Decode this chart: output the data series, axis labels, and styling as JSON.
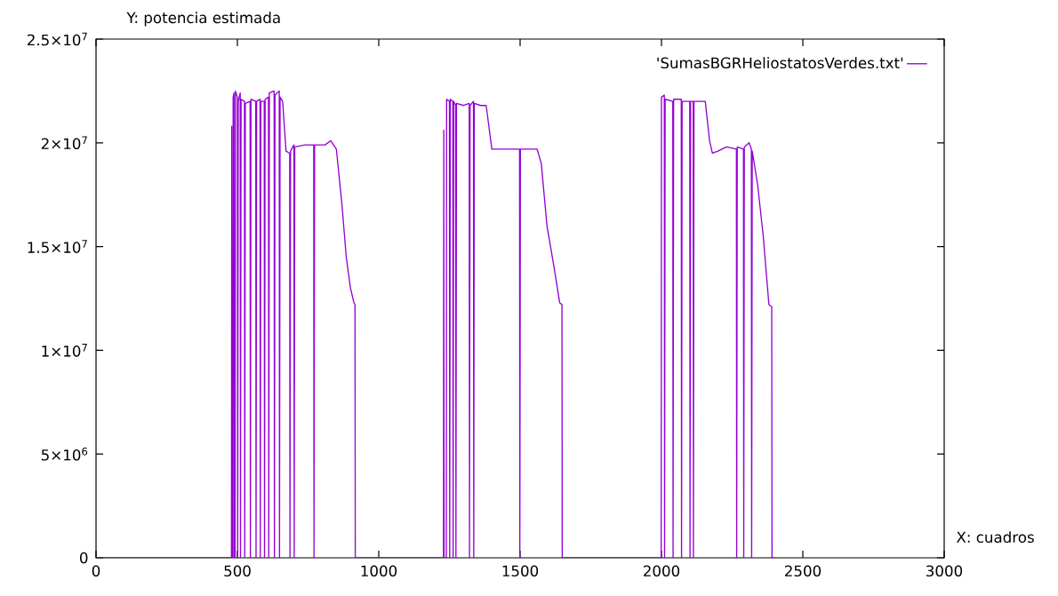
{
  "chart_data": {
    "type": "line",
    "xlabel": "X: cuadros",
    "ylabel": "Y: potencia estimada",
    "xlim": [
      0,
      3000
    ],
    "ylim": [
      0,
      25000000
    ],
    "xticks": [
      0,
      500,
      1000,
      1500,
      2000,
      2500,
      3000
    ],
    "yticks": [
      0,
      {
        "value": 5000000,
        "label": "5×10$^{6}$"
      },
      {
        "value": 10000000,
        "label": "1×10$^{7}$"
      },
      {
        "value": 15000000,
        "label": "1.5×10$^{7}$"
      },
      {
        "value": 20000000,
        "label": "2×10$^{7}$"
      },
      {
        "value": 25000000,
        "label": "2.5×10$^{7}$"
      }
    ],
    "legend": "top right",
    "series": [
      {
        "name": "'SumasBGRHeliostatosVerdes.txt'",
        "color": "#9400d3",
        "x": [
          0,
          479,
          480,
          481,
          484,
          485,
          488,
          489,
          492,
          493,
          500,
          501,
          503,
          510,
          511,
          513,
          525,
          526,
          528,
          545,
          546,
          548,
          565,
          566,
          568,
          580,
          581,
          583,
          595,
          596,
          598,
          610,
          611,
          613,
          630,
          631,
          633,
          648,
          649,
          651,
          660,
          672,
          685,
          686,
          688,
          700,
          701,
          703,
          740,
          770,
          771,
          773,
          810,
          830,
          850,
          870,
          885,
          900,
          912,
          916,
          917,
          1229,
          1230,
          1231,
          1239,
          1240,
          1250,
          1251,
          1253,
          1262,
          1263,
          1265,
          1272,
          1273,
          1275,
          1300,
          1320,
          1321,
          1323,
          1335,
          1336,
          1338,
          1360,
          1380,
          1400,
          1450,
          1498,
          1499,
          1501,
          1560,
          1575,
          1595,
          1620,
          1640,
          1648,
          1649,
          1999,
          2000,
          2010,
          2011,
          2013,
          2040,
          2041,
          2043,
          2070,
          2071,
          2073,
          2100,
          2101,
          2103,
          2112,
          2113,
          2115,
          2155,
          2170,
          2180,
          2200,
          2230,
          2265,
          2266,
          2268,
          2290,
          2291,
          2293,
          2310,
          2318,
          2319,
          2321,
          2340,
          2360,
          2380,
          2390,
          2391,
          2400
        ],
        "values": [
          0,
          0,
          20800000,
          0,
          0,
          22200000,
          22400000,
          0,
          0,
          22500000,
          22200000,
          0,
          22000000,
          22400000,
          0,
          22100000,
          22000000,
          0,
          21900000,
          22000000,
          0,
          22100000,
          22000000,
          0,
          22000000,
          22100000,
          0,
          22000000,
          22000000,
          0,
          22100000,
          22200000,
          0,
          22400000,
          22500000,
          0,
          22300000,
          22500000,
          0,
          22200000,
          22000000,
          19600000,
          19500000,
          0,
          19600000,
          19900000,
          0,
          19800000,
          19900000,
          19900000,
          0,
          19900000,
          19900000,
          20100000,
          19700000,
          17000000,
          14500000,
          13000000,
          12300000,
          12200000,
          0,
          0,
          20600000,
          0,
          0,
          22100000,
          22000000,
          0,
          22100000,
          22000000,
          0,
          22000000,
          21800000,
          0,
          21900000,
          21800000,
          21900000,
          0,
          21800000,
          22000000,
          0,
          21900000,
          21800000,
          21800000,
          19700000,
          19700000,
          19700000,
          0,
          19700000,
          19700000,
          19000000,
          16000000,
          14000000,
          12300000,
          12200000,
          0,
          0,
          22200000,
          22300000,
          0,
          22100000,
          22000000,
          0,
          22100000,
          22100000,
          0,
          22000000,
          22000000,
          0,
          22000000,
          22000000,
          0,
          22000000,
          22000000,
          20100000,
          19500000,
          19600000,
          19800000,
          19700000,
          0,
          19800000,
          19700000,
          0,
          19800000,
          20000000,
          19700000,
          0,
          19600000,
          18000000,
          15500000,
          12200000,
          12100000,
          0,
          0
        ]
      }
    ]
  }
}
